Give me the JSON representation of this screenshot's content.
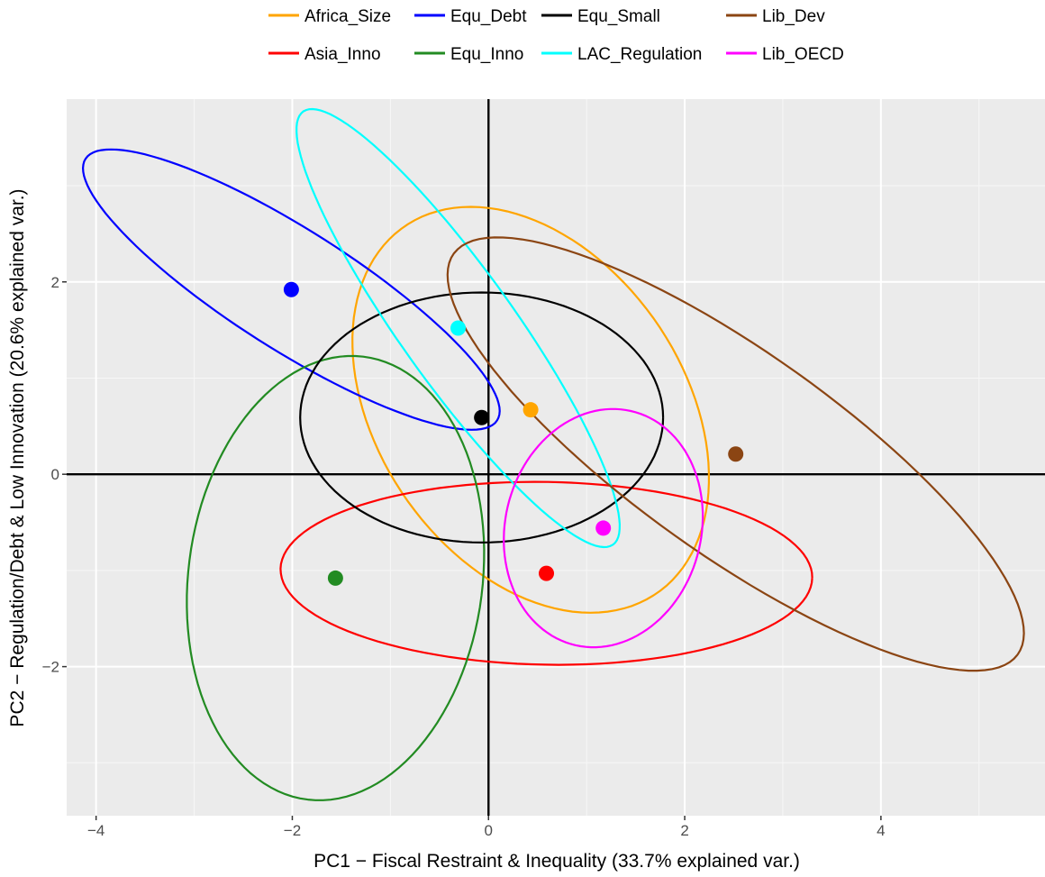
{
  "chart_data": {
    "type": "scatter",
    "xlabel": "PC1 − Fiscal Restraint & Inequality (33.7% explained var.)",
    "ylabel": "PC2 − Regulation/Debt & Low Innovation (20.6% explained var.)",
    "xlim": [
      -4.3,
      5.7
    ],
    "ylim": [
      -3.55,
      3.9
    ],
    "x_ticks": [
      -4,
      -2,
      0,
      2,
      4
    ],
    "y_ticks": [
      -2,
      0,
      2
    ],
    "x_tick_labels": [
      "−4",
      "−2",
      "0",
      "2",
      "4"
    ],
    "y_tick_labels": [
      "−2",
      "0",
      "2"
    ],
    "grid": true,
    "background": "#ebebeb",
    "reference_lines": {
      "x": 0,
      "y": 0
    },
    "legend_position": "top",
    "series": [
      {
        "name": "Africa_Size",
        "color": "#FFA500",
        "centroid": [
          0.43,
          0.67
        ],
        "ellipse": {
          "center": [
            0.43,
            0.67
          ],
          "semi_major": 2.3,
          "semi_minor": 1.57,
          "angle_deg": -57
        }
      },
      {
        "name": "Asia_Inno",
        "color": "#FF0000",
        "centroid": [
          0.59,
          -1.03
        ],
        "ellipse": {
          "center": [
            0.59,
            -1.03
          ],
          "semi_major": 2.71,
          "semi_minor": 0.95,
          "angle_deg": -1
        }
      },
      {
        "name": "Equ_Debt",
        "color": "#0000FF",
        "centroid": [
          -2.01,
          1.92
        ],
        "ellipse": {
          "center": [
            -2.01,
            1.92
          ],
          "semi_major": 2.5,
          "semi_minor": 0.62,
          "angle_deg": -33
        }
      },
      {
        "name": "Equ_Inno",
        "color": "#228B22",
        "centroid": [
          -1.56,
          -1.08
        ],
        "ellipse": {
          "center": [
            -1.56,
            -1.08
          ],
          "semi_major": 2.32,
          "semi_minor": 1.5,
          "angle_deg": -97
        }
      },
      {
        "name": "Equ_Small",
        "color": "#000000",
        "centroid": [
          -0.07,
          0.59
        ],
        "ellipse": {
          "center": [
            -0.07,
            0.59
          ],
          "semi_major": 1.85,
          "semi_minor": 1.3,
          "angle_deg": 0
        }
      },
      {
        "name": "LAC_Regulation",
        "color": "#00FFFF",
        "centroid": [
          -0.31,
          1.52
        ],
        "ellipse": {
          "center": [
            -0.31,
            1.52
          ],
          "semi_major": 2.75,
          "semi_minor": 0.58,
          "angle_deg": -55
        }
      },
      {
        "name": "Lib_Dev",
        "color": "#8B4513",
        "centroid": [
          2.52,
          0.21
        ],
        "ellipse": {
          "center": [
            2.52,
            0.21
          ],
          "semi_major": 3.55,
          "semi_minor": 1.05,
          "angle_deg": -36
        }
      },
      {
        "name": "Lib_OECD",
        "color": "#FF00FF",
        "centroid": [
          1.17,
          -0.56
        ],
        "ellipse": {
          "center": [
            1.17,
            -0.56
          ],
          "semi_major": 1.25,
          "semi_minor": 1.0,
          "angle_deg": -103
        }
      }
    ]
  }
}
